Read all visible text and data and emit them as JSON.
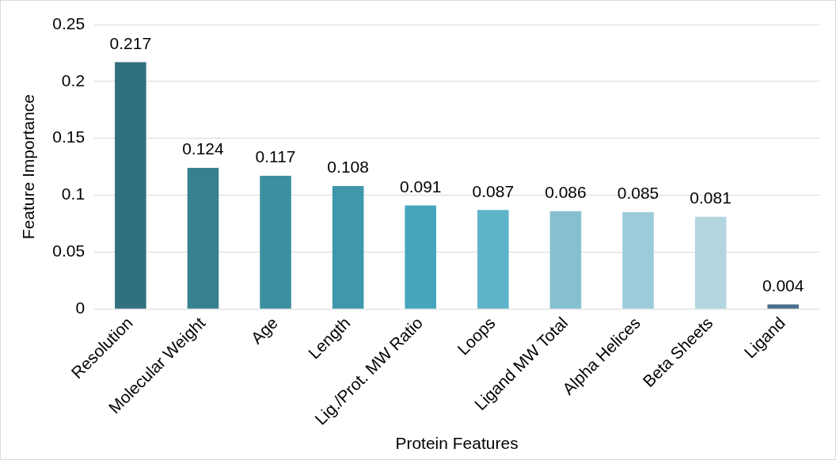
{
  "chart_data": {
    "type": "bar",
    "xlabel": "Protein Features",
    "ylabel": "Feature Importance",
    "categories": [
      "Resolution",
      "Molecular Weight",
      "Age",
      "Length",
      "Lig./Prot. MW Ratio",
      "Loops",
      "Ligand MW Total",
      "Alpha Helices",
      "Beta Sheets",
      "Ligand"
    ],
    "values": [
      0.217,
      0.124,
      0.117,
      0.108,
      0.091,
      0.087,
      0.086,
      0.085,
      0.081,
      0.004
    ],
    "colors": [
      "#31707f",
      "#37808f",
      "#3d8fa0",
      "#3e97aa",
      "#45a5bd",
      "#5fb3c9",
      "#86bfcf",
      "#9ccbdb",
      "#b3d5e0",
      "#4a6d8c"
    ],
    "ylim": [
      0,
      0.25
    ],
    "yticks": [
      0,
      0.05,
      0.1,
      0.15,
      0.2,
      0.25
    ],
    "grid": "y",
    "data_labels": true,
    "legend": false
  }
}
